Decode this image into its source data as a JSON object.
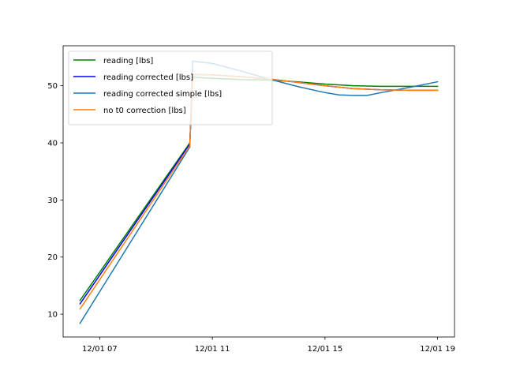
{
  "chart_data": {
    "type": "line",
    "title": "",
    "xlabel": "",
    "ylabel": "",
    "xlim": [
      5.7,
      19.6
    ],
    "ylim": [
      6.0,
      57.0
    ],
    "xticks": [
      {
        "value": 7,
        "label": "12/01 07"
      },
      {
        "value": 11,
        "label": "12/01 11"
      },
      {
        "value": 15,
        "label": "12/01 15"
      },
      {
        "value": 19,
        "label": "12/01 19"
      }
    ],
    "yticks": [
      {
        "value": 10,
        "label": "10"
      },
      {
        "value": 20,
        "label": "20"
      },
      {
        "value": 30,
        "label": "30"
      },
      {
        "value": 40,
        "label": "40"
      },
      {
        "value": 50,
        "label": "50"
      }
    ],
    "legend_position": "upper-left",
    "series": [
      {
        "name": "reading [lbs]",
        "color": "#008000",
        "points": [
          [
            6.3,
            12.4
          ],
          [
            10.2,
            40.0
          ],
          [
            10.3,
            51.5
          ],
          [
            11.0,
            51.3
          ],
          [
            12.0,
            51.1
          ],
          [
            13.0,
            51.0
          ],
          [
            14.0,
            50.7
          ],
          [
            15.0,
            50.3
          ],
          [
            16.0,
            50.0
          ],
          [
            17.0,
            49.9
          ],
          [
            18.0,
            49.9
          ],
          [
            19.0,
            49.9
          ]
        ]
      },
      {
        "name": "reading corrected [lbs]",
        "color": "#0000ff",
        "points": [
          [
            6.3,
            11.8
          ],
          [
            10.2,
            39.8
          ],
          [
            10.3,
            52.0
          ],
          [
            11.0,
            51.9
          ],
          [
            12.0,
            51.6
          ],
          [
            13.0,
            51.2
          ],
          [
            14.0,
            50.6
          ],
          [
            15.0,
            50.0
          ],
          [
            16.0,
            49.5
          ],
          [
            17.0,
            49.3
          ],
          [
            18.0,
            49.2
          ],
          [
            19.0,
            49.2
          ]
        ]
      },
      {
        "name": "reading corrected simple [lbs]",
        "color": "#1f77b4",
        "points": [
          [
            6.3,
            8.4
          ],
          [
            10.2,
            39.3
          ],
          [
            10.3,
            54.3
          ],
          [
            11.0,
            53.9
          ],
          [
            12.0,
            52.6
          ],
          [
            13.0,
            51.2
          ],
          [
            14.0,
            49.9
          ],
          [
            15.0,
            48.8
          ],
          [
            15.5,
            48.4
          ],
          [
            16.0,
            48.3
          ],
          [
            16.5,
            48.3
          ],
          [
            17.0,
            48.8
          ],
          [
            18.0,
            49.7
          ],
          [
            19.0,
            50.7
          ]
        ]
      },
      {
        "name": "no t0 correction [lbs]",
        "color": "#ff7f0e",
        "points": [
          [
            6.3,
            10.9
          ],
          [
            10.2,
            39.5
          ],
          [
            10.3,
            52.0
          ],
          [
            11.0,
            51.9
          ],
          [
            12.0,
            51.6
          ],
          [
            13.0,
            51.2
          ],
          [
            14.0,
            50.6
          ],
          [
            15.0,
            50.0
          ],
          [
            16.0,
            49.5
          ],
          [
            17.0,
            49.3
          ],
          [
            18.0,
            49.2
          ],
          [
            19.0,
            49.2
          ]
        ]
      }
    ]
  }
}
